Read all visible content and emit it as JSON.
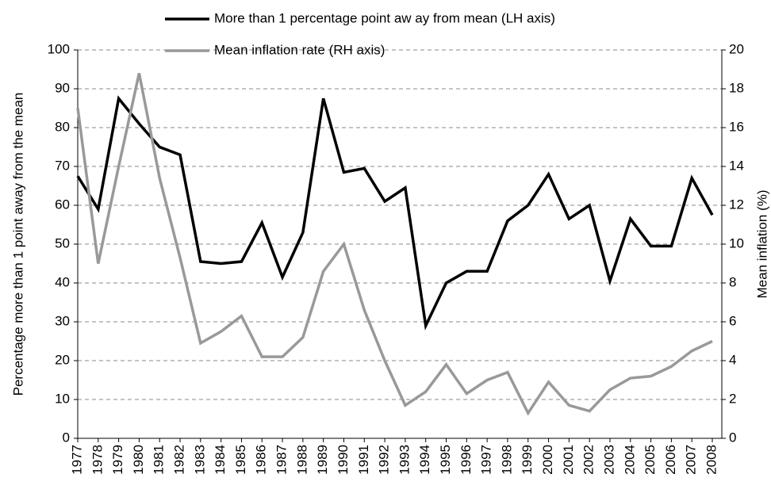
{
  "chart_data": {
    "type": "line",
    "categories": [
      "1977",
      "1978",
      "1979",
      "1980",
      "1981",
      "1982",
      "1983",
      "1984",
      "1985",
      "1986",
      "1987",
      "1988",
      "1989",
      "1990",
      "1991",
      "1992",
      "1993",
      "1994",
      "1995",
      "1996",
      "1997",
      "1998",
      "1999",
      "2000",
      "2001",
      "2002",
      "2003",
      "2004",
      "2005",
      "2006",
      "2007",
      "2008"
    ],
    "series": [
      {
        "name": "More than 1 percentage point aw ay from mean (LH axis)",
        "color": "#000000",
        "values": [
          67.5,
          59,
          87.5,
          81,
          75,
          73,
          45.5,
          45,
          45.5,
          55.5,
          41.5,
          53,
          87.5,
          68.5,
          69.5,
          61,
          64.5,
          29,
          40,
          43,
          43,
          56,
          60,
          68,
          56.5,
          60,
          40.5,
          56.5,
          49.5,
          49.5,
          67,
          57.5
        ]
      },
      {
        "name": "Mean inflation rate (RH axis)",
        "color": "#999999",
        "axis": "y2",
        "values": [
          17,
          9,
          14,
          18.8,
          13.4,
          9.3,
          4.9,
          5.5,
          6.3,
          4.2,
          4.2,
          5.2,
          8.6,
          10,
          6.6,
          4,
          1.7,
          2.4,
          3.8,
          2.3,
          3,
          3.4,
          1.3,
          2.9,
          1.7,
          1.4,
          2.5,
          3.1,
          3.2,
          3.7,
          4.5,
          5
        ]
      }
    ],
    "ylabel": "Percentage more than 1 point away from the mean",
    "y2label": "Mean inflation (%)",
    "ylim": [
      0,
      100
    ],
    "yticks": [
      0,
      10,
      20,
      30,
      40,
      50,
      60,
      70,
      80,
      90,
      100
    ],
    "y2lim": [
      0,
      20
    ],
    "y2ticks": [
      0,
      2,
      4,
      6,
      8,
      10,
      12,
      14,
      16,
      18,
      20
    ],
    "grid": true
  }
}
